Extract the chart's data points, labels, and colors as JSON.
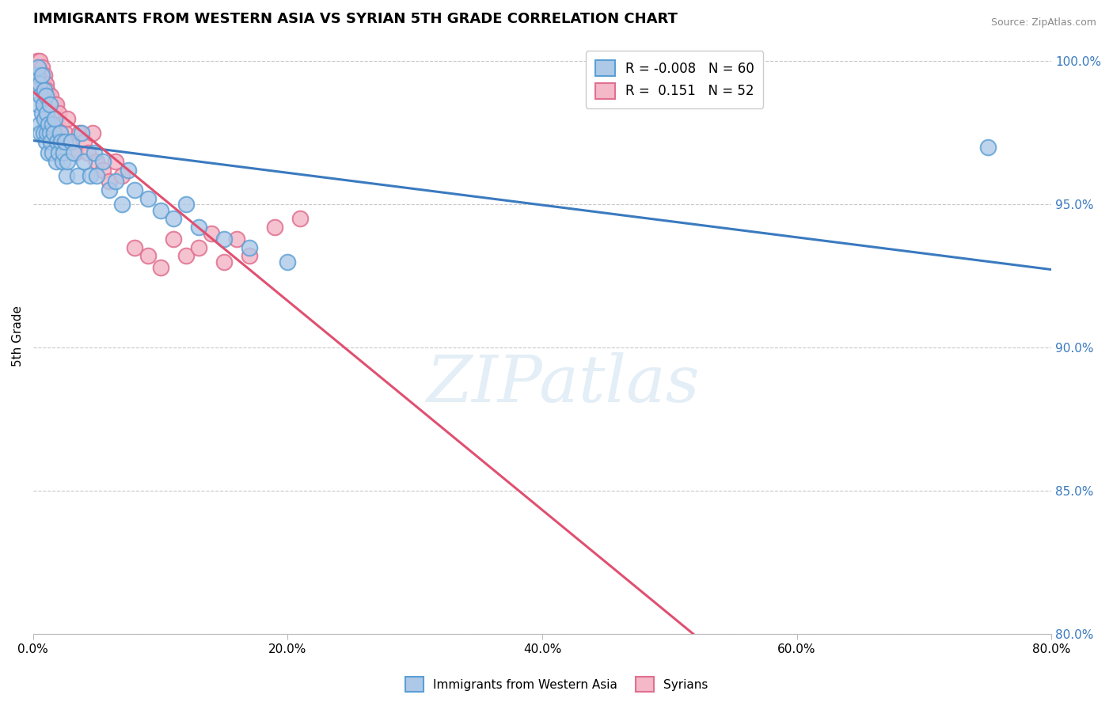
{
  "title": "IMMIGRANTS FROM WESTERN ASIA VS SYRIAN 5TH GRADE CORRELATION CHART",
  "source": "Source: ZipAtlas.com",
  "ylabel": "5th Grade",
  "xlim": [
    0.0,
    0.8
  ],
  "ylim": [
    0.8,
    1.008
  ],
  "xtick_labels": [
    "0.0%",
    "20.0%",
    "40.0%",
    "60.0%",
    "80.0%"
  ],
  "xtick_values": [
    0.0,
    0.2,
    0.4,
    0.6,
    0.8
  ],
  "ytick_labels": [
    "80.0%",
    "85.0%",
    "90.0%",
    "95.0%",
    "100.0%"
  ],
  "ytick_values": [
    0.8,
    0.85,
    0.9,
    0.95,
    1.0
  ],
  "blue_R": -0.008,
  "blue_N": 60,
  "pink_R": 0.151,
  "pink_N": 52,
  "blue_color": "#aec8e8",
  "pink_color": "#f4b8c8",
  "blue_edge_color": "#5a9fd4",
  "pink_edge_color": "#e07090",
  "blue_line_color": "#3a7abf",
  "pink_line_color": "#e05070",
  "legend_label_blue": "Immigrants from Western Asia",
  "legend_label_pink": "Syrians",
  "watermark": "ZIPatlas",
  "blue_dots_x": [
    0.002,
    0.003,
    0.004,
    0.004,
    0.005,
    0.005,
    0.006,
    0.006,
    0.007,
    0.007,
    0.008,
    0.008,
    0.009,
    0.009,
    0.01,
    0.01,
    0.011,
    0.011,
    0.012,
    0.012,
    0.013,
    0.013,
    0.014,
    0.015,
    0.015,
    0.016,
    0.017,
    0.018,
    0.019,
    0.02,
    0.021,
    0.022,
    0.023,
    0.024,
    0.025,
    0.026,
    0.027,
    0.03,
    0.032,
    0.035,
    0.038,
    0.04,
    0.045,
    0.048,
    0.05,
    0.055,
    0.06,
    0.065,
    0.07,
    0.075,
    0.08,
    0.09,
    0.1,
    0.11,
    0.12,
    0.13,
    0.15,
    0.17,
    0.2,
    0.75
  ],
  "blue_dots_y": [
    0.99,
    0.995,
    0.985,
    0.998,
    0.992,
    0.978,
    0.988,
    0.975,
    0.982,
    0.995,
    0.985,
    0.975,
    0.99,
    0.98,
    0.972,
    0.988,
    0.975,
    0.982,
    0.968,
    0.978,
    0.975,
    0.985,
    0.972,
    0.968,
    0.978,
    0.975,
    0.98,
    0.965,
    0.972,
    0.968,
    0.975,
    0.972,
    0.965,
    0.968,
    0.972,
    0.96,
    0.965,
    0.972,
    0.968,
    0.96,
    0.975,
    0.965,
    0.96,
    0.968,
    0.96,
    0.965,
    0.955,
    0.958,
    0.95,
    0.962,
    0.955,
    0.952,
    0.948,
    0.945,
    0.95,
    0.942,
    0.938,
    0.935,
    0.93,
    0.97
  ],
  "pink_dots_x": [
    0.002,
    0.003,
    0.003,
    0.004,
    0.005,
    0.005,
    0.006,
    0.007,
    0.007,
    0.008,
    0.008,
    0.009,
    0.009,
    0.01,
    0.01,
    0.011,
    0.012,
    0.012,
    0.013,
    0.014,
    0.015,
    0.016,
    0.017,
    0.018,
    0.019,
    0.02,
    0.022,
    0.025,
    0.027,
    0.03,
    0.033,
    0.036,
    0.04,
    0.043,
    0.047,
    0.05,
    0.055,
    0.06,
    0.065,
    0.07,
    0.08,
    0.09,
    0.1,
    0.11,
    0.12,
    0.13,
    0.14,
    0.15,
    0.16,
    0.17,
    0.19,
    0.21
  ],
  "pink_dots_y": [
    0.995,
    1.0,
    0.998,
    0.992,
    0.998,
    1.0,
    0.995,
    0.99,
    0.998,
    0.992,
    0.985,
    0.995,
    0.988,
    0.992,
    0.985,
    0.99,
    0.988,
    0.982,
    0.985,
    0.988,
    0.982,
    0.985,
    0.98,
    0.985,
    0.978,
    0.982,
    0.978,
    0.975,
    0.98,
    0.972,
    0.968,
    0.975,
    0.972,
    0.968,
    0.975,
    0.965,
    0.962,
    0.958,
    0.965,
    0.96,
    0.935,
    0.932,
    0.928,
    0.938,
    0.932,
    0.935,
    0.94,
    0.93,
    0.938,
    0.932,
    0.942,
    0.945
  ]
}
